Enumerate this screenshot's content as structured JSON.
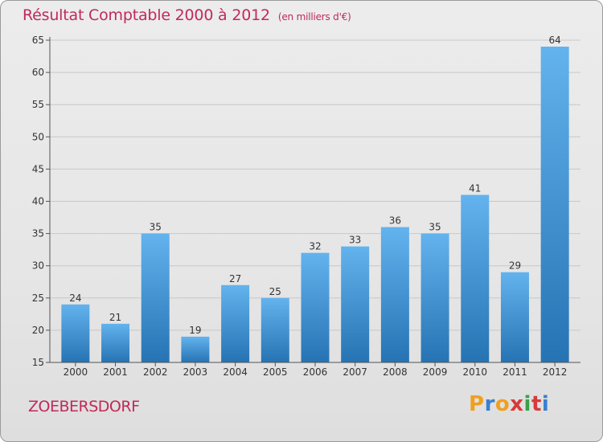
{
  "title": "Résultat Comptable 2000 à 2012",
  "unit_note": "(en milliers d'€)",
  "commune": "ZOEBERSDORF",
  "logo": {
    "text": "Proxiti",
    "letters": [
      "P",
      "r",
      "o",
      "x",
      "i",
      "t",
      "i"
    ],
    "colors": [
      "#f0a020",
      "#3a7fd0",
      "#f0a020",
      "#d83a3a",
      "#3aa04a",
      "#d83a3a",
      "#3a7fd0"
    ]
  },
  "colors": {
    "title": "#c02a5a",
    "bar_light": "#63b3ee",
    "bar_dark": "#2673b3",
    "grid": "#c8c8c8",
    "axis_text": "#333333"
  },
  "chart_data": {
    "type": "bar",
    "title": "Résultat Comptable 2000 à 2012",
    "ylabel": "en milliers d'€",
    "xlabel": "",
    "categories": [
      "2000",
      "2001",
      "2002",
      "2003",
      "2004",
      "2005",
      "2006",
      "2007",
      "2008",
      "2009",
      "2010",
      "2011",
      "2012"
    ],
    "values": [
      24,
      21,
      35,
      19,
      27,
      25,
      32,
      33,
      36,
      35,
      41,
      29,
      64
    ],
    "ylim": [
      15,
      65
    ],
    "yticks": [
      15,
      20,
      25,
      30,
      35,
      40,
      45,
      50,
      55,
      60,
      65
    ],
    "grid": true,
    "data_labels": true
  }
}
